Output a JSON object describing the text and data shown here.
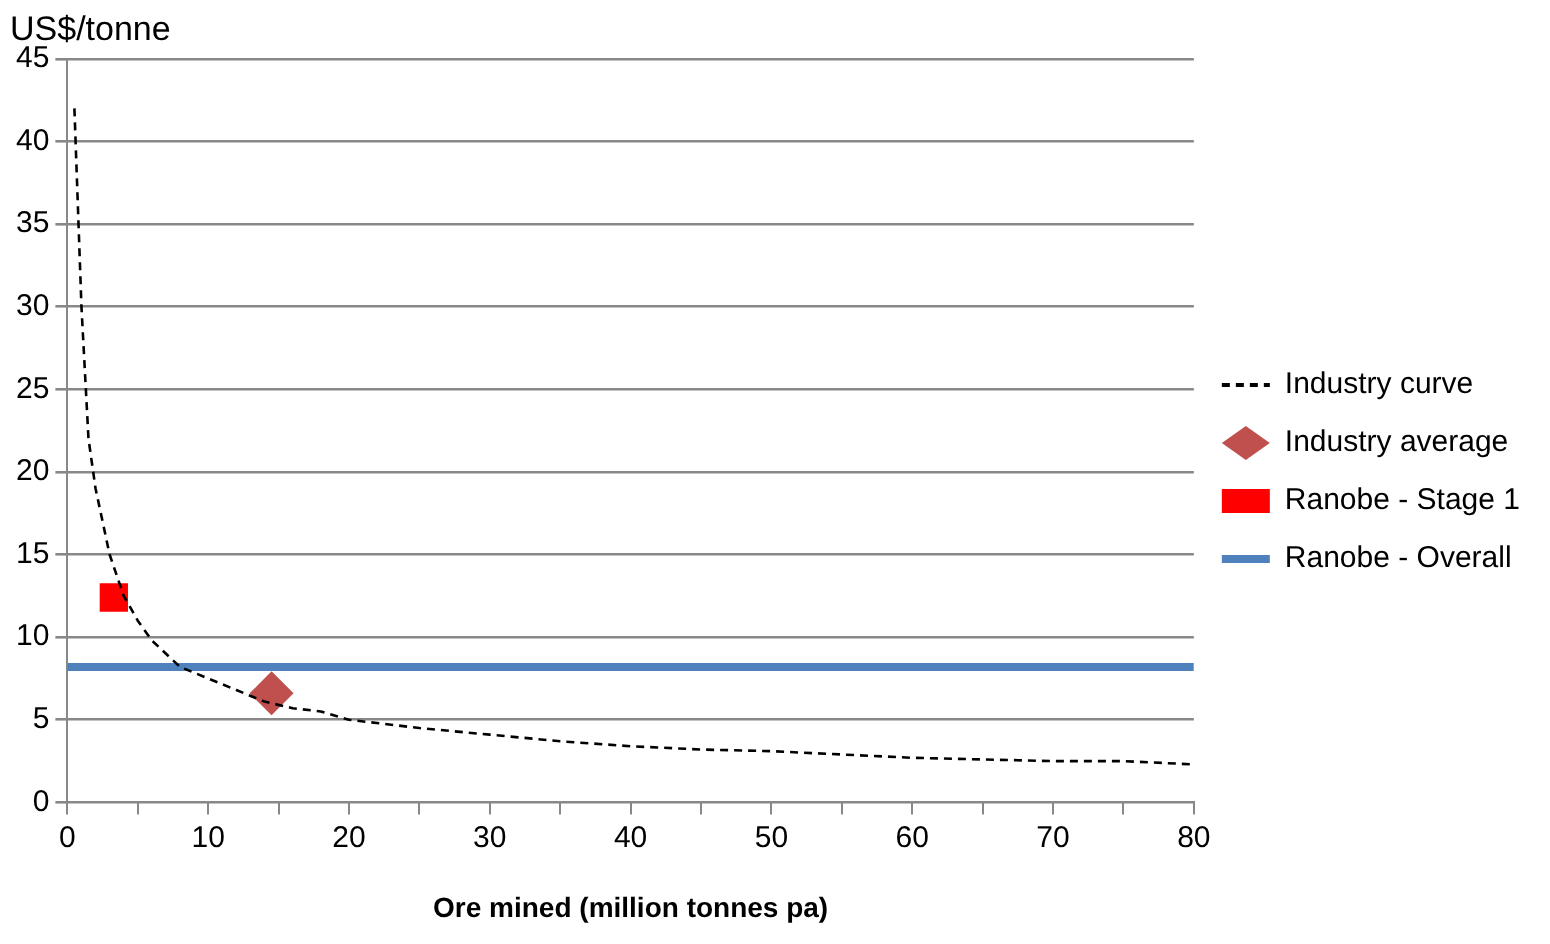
{
  "chart_data": {
    "type": "line",
    "ylabel": "US$/tonne",
    "xlabel": "Ore mined (million tonnes pa)",
    "xlim": [
      0,
      80
    ],
    "xticks": [
      0,
      {
        "value": 5,
        "label": null
      },
      10,
      {
        "value": 15,
        "label": null
      },
      20,
      {
        "value": 25,
        "label": null
      },
      30,
      {
        "value": 35,
        "label": null
      },
      40,
      {
        "value": 45,
        "label": null
      },
      50,
      {
        "value": 55,
        "label": null
      },
      60,
      {
        "value": 65,
        "label": null
      },
      70,
      {
        "value": 75,
        "label": null
      },
      80
    ],
    "ylim": [
      0,
      45
    ],
    "yticks": [
      0,
      5,
      10,
      15,
      20,
      25,
      30,
      35,
      40,
      45
    ],
    "grid": "y",
    "legend": "right",
    "series": [
      {
        "name": "Industry curve",
        "color": "#000000",
        "line_style": "dashed",
        "marker": "none",
        "x": [
          0.5,
          1,
          1.5,
          2,
          3,
          4,
          5,
          6,
          8,
          10,
          12,
          14,
          16,
          18,
          20,
          25,
          30,
          35,
          40,
          45,
          50,
          55,
          60,
          65,
          70,
          75,
          80
        ],
        "values": [
          42,
          30,
          22,
          19,
          15,
          12.5,
          11,
          9.8,
          8.2,
          7.5,
          6.8,
          6.1,
          5.7,
          5.5,
          5,
          4.5,
          4.1,
          3.7,
          3.4,
          3.2,
          3.1,
          2.9,
          2.7,
          2.6,
          2.5,
          2.5,
          2.3
        ]
      },
      {
        "name": "Industry average",
        "type": "scatter",
        "color": "#c0504d",
        "marker": "diamond",
        "x": [
          14.5
        ],
        "values": [
          6.6
        ]
      },
      {
        "name": "Ranobe - Stage 1",
        "type": "scatter",
        "color": "#ff0000",
        "marker": "square",
        "x": [
          3.3
        ],
        "values": [
          12.4
        ]
      },
      {
        "name": "Ranobe - Overall",
        "color": "#4f81bd",
        "line_style": "solid",
        "marker": "none",
        "x": [
          0,
          80
        ],
        "values": [
          8.2,
          8.2
        ]
      }
    ]
  }
}
